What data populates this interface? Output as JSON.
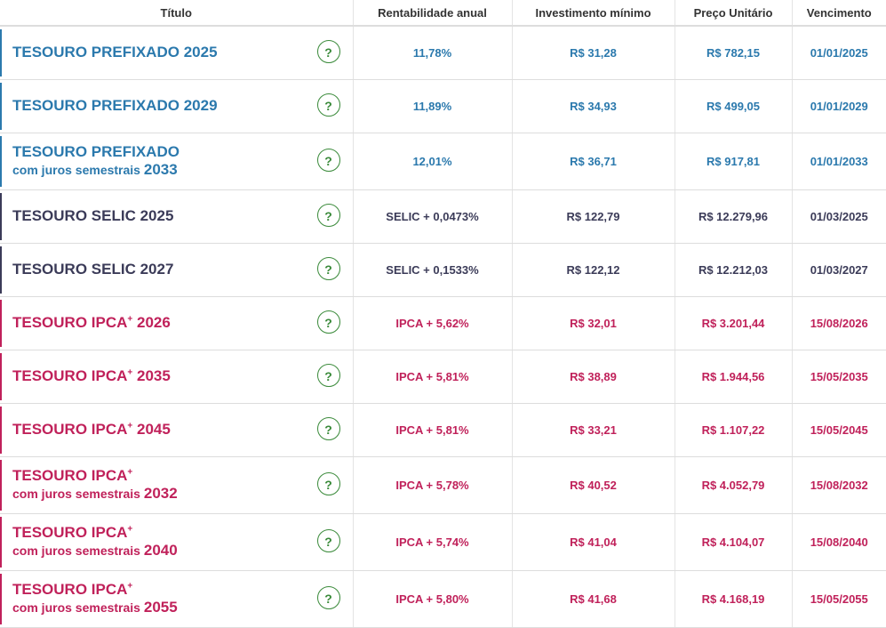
{
  "table": {
    "header": [
      "Título",
      "Rentabilidade anual",
      "Investimento mínimo",
      "Preço Unitário",
      "Vencimento"
    ],
    "help_icon": "?",
    "rows": [
      {
        "name": "TESOURO PREFIXADO",
        "year": "2025",
        "rate": "11,78%",
        "min": "R$ 31,28",
        "price": "R$ 782,15",
        "due": "01/01/2025",
        "color": "#2b79ad"
      },
      {
        "name": "TESOURO PREFIXADO",
        "year": "2029",
        "rate": "11,89%",
        "min": "R$ 34,93",
        "price": "R$ 499,05",
        "due": "01/01/2029",
        "color": "#2b79ad"
      },
      {
        "name": "TESOURO PREFIXADO",
        "sub": "com juros semestrais",
        "year": "2033",
        "rate": "12,01%",
        "min": "R$ 36,71",
        "price": "R$ 917,81",
        "due": "01/01/2033",
        "color": "#2b79ad"
      },
      {
        "name": "TESOURO SELIC",
        "year": "2025",
        "rate": "SELIC + 0,0473%",
        "min": "R$ 122,79",
        "price": "R$ 12.279,96",
        "due": "01/03/2025",
        "color": "#3b3b58"
      },
      {
        "name": "TESOURO SELIC",
        "year": "2027",
        "rate": "SELIC + 0,1533%",
        "min": "R$ 122,12",
        "price": "R$ 12.212,03",
        "due": "01/03/2027",
        "color": "#3b3b58"
      },
      {
        "name": "TESOURO IPCA",
        "sup": "+",
        "year": "2026",
        "rate": "IPCA + 5,62%",
        "min": "R$ 32,01",
        "price": "R$ 3.201,44",
        "due": "15/08/2026",
        "color": "#c0215a"
      },
      {
        "name": "TESOURO IPCA",
        "sup": "+",
        "year": "2035",
        "rate": "IPCA + 5,81%",
        "min": "R$ 38,89",
        "price": "R$ 1.944,56",
        "due": "15/05/2035",
        "color": "#c0215a"
      },
      {
        "name": "TESOURO IPCA",
        "sup": "+",
        "year": "2045",
        "rate": "IPCA + 5,81%",
        "min": "R$ 33,21",
        "price": "R$ 1.107,22",
        "due": "15/05/2045",
        "color": "#c0215a"
      },
      {
        "name": "TESOURO IPCA",
        "sup": "+",
        "sub": "com juros semestrais",
        "year": "2032",
        "rate": "IPCA + 5,78%",
        "min": "R$ 40,52",
        "price": "R$ 4.052,79",
        "due": "15/08/2032",
        "color": "#c0215a"
      },
      {
        "name": "TESOURO IPCA",
        "sup": "+",
        "sub": "com juros semestrais",
        "year": "2040",
        "rate": "IPCA + 5,74%",
        "min": "R$ 41,04",
        "price": "R$ 4.104,07",
        "due": "15/08/2040",
        "color": "#c0215a"
      },
      {
        "name": "TESOURO IPCA",
        "sup": "+",
        "sub": "com juros semestrais",
        "year": "2055",
        "rate": "IPCA + 5,80%",
        "min": "R$ 41,68",
        "price": "R$ 4.168,19",
        "due": "15/05/2055",
        "color": "#c0215a"
      }
    ]
  }
}
